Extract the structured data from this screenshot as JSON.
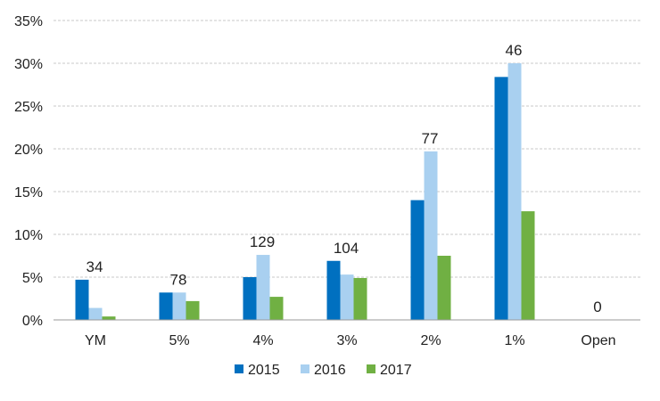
{
  "chart_data": {
    "type": "bar",
    "categories": [
      "YM",
      "5%",
      "4%",
      "3%",
      "2%",
      "1%",
      "Open"
    ],
    "series": [
      {
        "name": "2015",
        "color": "#0070c0",
        "values": [
          4.7,
          3.2,
          5.0,
          6.9,
          14.0,
          28.4,
          0
        ]
      },
      {
        "name": "2016",
        "color": "#a9d0f0",
        "values": [
          1.4,
          3.2,
          7.6,
          5.3,
          19.7,
          30.0,
          0
        ]
      },
      {
        "name": "2017",
        "color": "#70b043",
        "values": [
          0.4,
          2.2,
          2.7,
          4.9,
          7.5,
          12.7,
          0
        ]
      }
    ],
    "data_labels": [
      "34",
      "78",
      "129",
      "104",
      "77",
      "46",
      "0"
    ],
    "ylim": [
      0,
      35
    ],
    "yticks": [
      0,
      5,
      10,
      15,
      20,
      25,
      30,
      35
    ],
    "ytick_labels": [
      "0%",
      "5%",
      "10%",
      "15%",
      "20%",
      "25%",
      "30%",
      "35%"
    ],
    "title": "",
    "xlabel": "",
    "ylabel": "",
    "grid": true,
    "legend": "bottom"
  }
}
